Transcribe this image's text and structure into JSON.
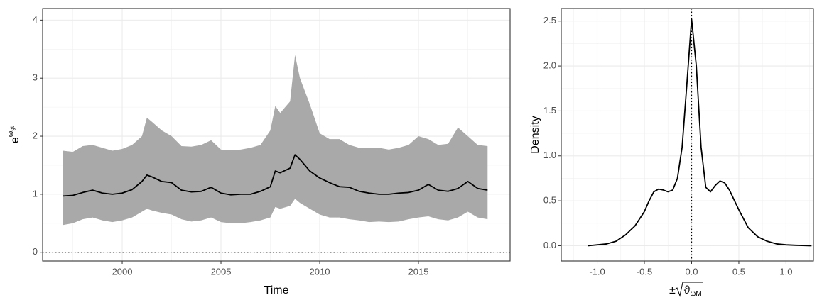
{
  "chart_data": [
    {
      "type": "line",
      "xlabel": "Time",
      "ylabel": {
        "base": "e",
        "exponent": "ω",
        "subscript": "gt"
      },
      "x": [
        1997,
        1997.5,
        1998,
        1998.5,
        1999,
        1999.5,
        2000,
        2000.5,
        2001,
        2001.25,
        2001.5,
        2002,
        2002.5,
        2003,
        2003.5,
        2004,
        2004.5,
        2005,
        2005.5,
        2006,
        2006.5,
        2007,
        2007.5,
        2007.75,
        2008,
        2008.5,
        2008.75,
        2009,
        2009.5,
        2010,
        2010.5,
        2011,
        2011.5,
        2012,
        2012.5,
        2013,
        2013.5,
        2014,
        2014.5,
        2015,
        2015.5,
        2016,
        2016.5,
        2017,
        2017.5,
        2018,
        2018.5
      ],
      "band": {
        "color": "#a9a9a9",
        "upper": [
          1.75,
          1.73,
          1.83,
          1.85,
          1.8,
          1.75,
          1.78,
          1.85,
          2.0,
          2.32,
          2.25,
          2.1,
          2.0,
          1.83,
          1.82,
          1.85,
          1.93,
          1.77,
          1.76,
          1.77,
          1.8,
          1.85,
          2.1,
          2.52,
          2.4,
          2.6,
          3.4,
          3.0,
          2.55,
          2.05,
          1.95,
          1.95,
          1.85,
          1.8,
          1.8,
          1.8,
          1.77,
          1.8,
          1.85,
          2.0,
          1.95,
          1.85,
          1.87,
          2.15,
          2.0,
          1.85,
          1.83
        ],
        "lower": [
          0.47,
          0.5,
          0.57,
          0.6,
          0.55,
          0.52,
          0.55,
          0.6,
          0.7,
          0.75,
          0.72,
          0.68,
          0.65,
          0.57,
          0.53,
          0.55,
          0.6,
          0.52,
          0.5,
          0.5,
          0.52,
          0.55,
          0.6,
          0.78,
          0.75,
          0.8,
          0.92,
          0.85,
          0.75,
          0.65,
          0.6,
          0.6,
          0.57,
          0.55,
          0.52,
          0.53,
          0.52,
          0.53,
          0.57,
          0.6,
          0.62,
          0.57,
          0.55,
          0.6,
          0.7,
          0.6,
          0.57
        ]
      },
      "series": [
        {
          "color": "#000000",
          "values": [
            0.97,
            0.98,
            1.03,
            1.07,
            1.02,
            1.0,
            1.02,
            1.08,
            1.22,
            1.33,
            1.3,
            1.22,
            1.2,
            1.07,
            1.04,
            1.05,
            1.12,
            1.02,
            0.99,
            1.0,
            1.0,
            1.05,
            1.13,
            1.4,
            1.37,
            1.45,
            1.68,
            1.6,
            1.4,
            1.28,
            1.2,
            1.13,
            1.12,
            1.05,
            1.02,
            1.0,
            1.0,
            1.02,
            1.03,
            1.07,
            1.17,
            1.07,
            1.05,
            1.1,
            1.22,
            1.1,
            1.07
          ]
        }
      ],
      "hline": 0,
      "xlim": [
        1995.97,
        2019.64
      ],
      "xticks": [
        2000,
        2005,
        2010,
        2015
      ],
      "ylim": [
        -0.15,
        4.2
      ],
      "yticks": [
        0,
        1,
        2,
        3,
        4
      ],
      "grid": true
    },
    {
      "type": "line",
      "xlabel": {
        "prefix": "±",
        "radicand": "ϑ",
        "subscript": "ωM"
      },
      "ylabel": "Density",
      "x": [
        -1.1,
        -0.9,
        -0.8,
        -0.7,
        -0.6,
        -0.5,
        -0.45,
        -0.4,
        -0.35,
        -0.3,
        -0.25,
        -0.2,
        -0.15,
        -0.1,
        -0.05,
        0,
        0.05,
        0.1,
        0.15,
        0.2,
        0.25,
        0.3,
        0.35,
        0.4,
        0.5,
        0.6,
        0.7,
        0.8,
        0.9,
        1.0,
        1.1,
        1.27
      ],
      "series": [
        {
          "color": "#000000",
          "values": [
            0.0,
            0.02,
            0.05,
            0.12,
            0.22,
            0.38,
            0.5,
            0.6,
            0.63,
            0.62,
            0.6,
            0.62,
            0.75,
            1.1,
            1.8,
            2.52,
            2.0,
            1.1,
            0.65,
            0.6,
            0.67,
            0.72,
            0.7,
            0.62,
            0.4,
            0.2,
            0.1,
            0.05,
            0.02,
            0.01,
            0.005,
            0.0
          ]
        }
      ],
      "vline": 0,
      "xlim": [
        -1.38,
        1.29
      ],
      "xticks": [
        {
          "value": -1,
          "label": "-1.0"
        },
        {
          "value": -0.5,
          "label": "-0.5"
        },
        {
          "value": 0,
          "label": "0.0"
        },
        0.5,
        {
          "value": 1,
          "label": "1.0"
        }
      ],
      "ylim": [
        -0.17,
        2.64
      ],
      "yticks": [
        {
          "value": 0,
          "label": "0.0"
        },
        0.5,
        {
          "value": 1,
          "label": "1.0"
        },
        1.5,
        {
          "value": 2,
          "label": "2.0"
        },
        2.5
      ],
      "grid": true
    }
  ]
}
